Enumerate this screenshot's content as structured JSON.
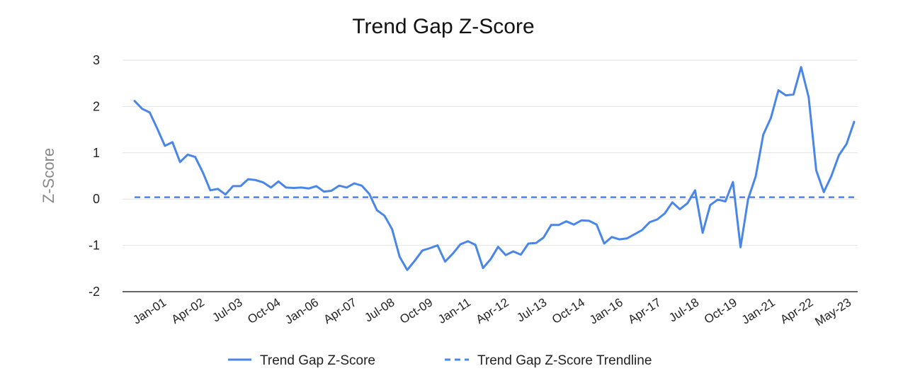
{
  "chart_data": {
    "type": "line",
    "title": "Trend Gap Z-Score",
    "xlabel": "",
    "ylabel": "Z-Score",
    "ylim": [
      -2,
      3
    ],
    "yticks": [
      3,
      2,
      1,
      0,
      -1,
      -2
    ],
    "grid": true,
    "legend_position": "bottom",
    "x_tick_labels": [
      "Jan-01",
      "Apr-02",
      "Jul-03",
      "Oct-04",
      "Jan-06",
      "Apr-07",
      "Jul-08",
      "Oct-09",
      "Jan-11",
      "Apr-12",
      "Jul-13",
      "Oct-14",
      "Jan-16",
      "Apr-17",
      "Jul-18",
      "Oct-19",
      "Jan-21",
      "Apr-22",
      "May-23"
    ],
    "series": [
      {
        "name": "Trend Gap Z-Score",
        "color": "#4a86e8",
        "style": "solid",
        "values": [
          2.12,
          1.95,
          1.87,
          1.52,
          1.15,
          1.23,
          0.8,
          0.96,
          0.91,
          0.58,
          0.19,
          0.22,
          0.1,
          0.28,
          0.28,
          0.43,
          0.41,
          0.36,
          0.25,
          0.38,
          0.25,
          0.24,
          0.25,
          0.23,
          0.28,
          0.16,
          0.18,
          0.29,
          0.25,
          0.34,
          0.29,
          0.11,
          -0.24,
          -0.36,
          -0.65,
          -1.25,
          -1.53,
          -1.33,
          -1.11,
          -1.06,
          -1.0,
          -1.35,
          -1.18,
          -0.98,
          -0.91,
          -0.99,
          -1.49,
          -1.3,
          -1.03,
          -1.21,
          -1.13,
          -1.2,
          -0.96,
          -0.95,
          -0.83,
          -0.56,
          -0.56,
          -0.48,
          -0.55,
          -0.46,
          -0.47,
          -0.55,
          -0.96,
          -0.82,
          -0.87,
          -0.85,
          -0.76,
          -0.67,
          -0.5,
          -0.44,
          -0.31,
          -0.07,
          -0.22,
          -0.09,
          0.19,
          -0.73,
          -0.13,
          -0.01,
          -0.05,
          0.37,
          -1.04,
          0.0,
          0.49,
          1.39,
          1.75,
          2.35,
          2.24,
          2.26,
          2.85,
          2.2,
          0.62,
          0.15,
          0.5,
          0.95,
          1.19,
          1.67
        ]
      },
      {
        "name": "Trend Gap Z-Score Trendline",
        "color": "#4a86e8",
        "style": "dashed",
        "constant": 0.04
      }
    ]
  }
}
